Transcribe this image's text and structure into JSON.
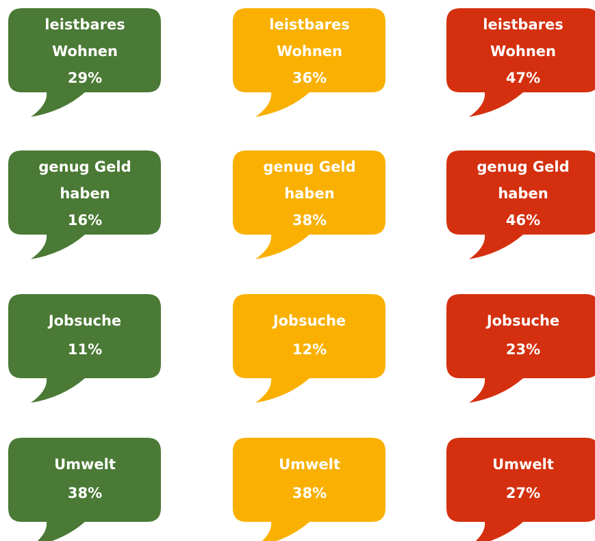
{
  "rows": [
    {
      "items": [
        {
          "lines": [
            "leistbares",
            "Wohnen"
          ],
          "value": "29%"
        },
        {
          "lines": [
            "leistbares",
            "Wohnen"
          ],
          "value": "36%"
        },
        {
          "lines": [
            "leistbares",
            "Wohnen"
          ],
          "value": "47%"
        }
      ]
    },
    {
      "items": [
        {
          "lines": [
            "genug Geld",
            "haben"
          ],
          "value": "16%"
        },
        {
          "lines": [
            "genug Geld",
            "haben"
          ],
          "value": "38%"
        },
        {
          "lines": [
            "genug Geld",
            "haben"
          ],
          "value": "46%"
        }
      ]
    },
    {
      "items": [
        {
          "lines": [
            "Jobsuche"
          ],
          "value": "11%"
        },
        {
          "lines": [
            "Jobsuche"
          ],
          "value": "12%"
        },
        {
          "lines": [
            "Jobsuche"
          ],
          "value": "23%"
        }
      ]
    },
    {
      "items": [
        {
          "lines": [
            "Umwelt"
          ],
          "value": "38%"
        },
        {
          "lines": [
            "Umwelt"
          ],
          "value": "38%"
        },
        {
          "lines": [
            "Umwelt"
          ],
          "value": "27%"
        }
      ]
    }
  ]
}
